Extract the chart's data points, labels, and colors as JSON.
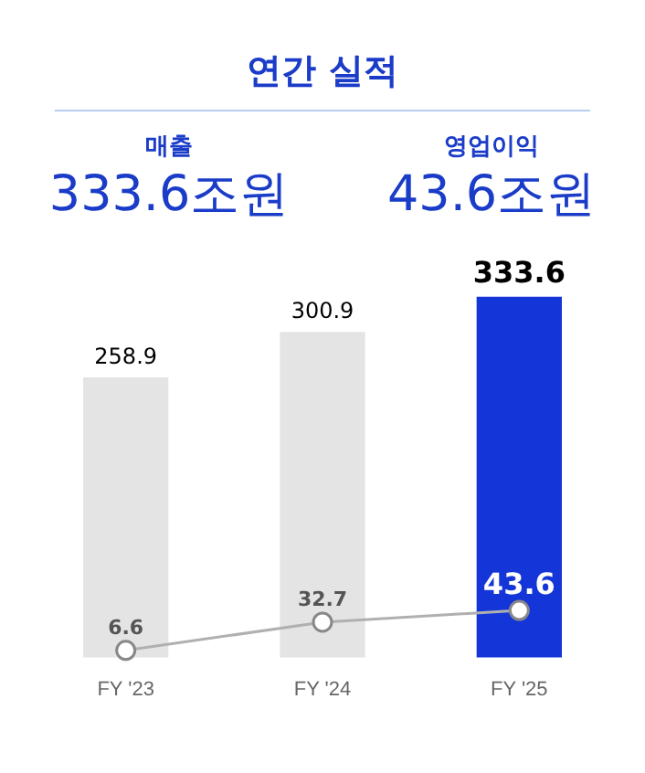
{
  "chart_data": {
    "type": "bar",
    "title": "연간 실적",
    "annotations": [
      "매출",
      "333.6조원",
      "영업이익",
      "43.6조원"
    ],
    "categories": [
      "FY '23",
      "FY '24",
      "FY '25"
    ],
    "series": [
      {
        "colors": [
          "#e4e4e4",
          "#e4e4e4",
          "#1436d8"
        ],
        "values": [
          258.9,
          300.9,
          333.6
        ]
      },
      {
        "type": "line",
        "color": "#b0b0b0",
        "values": [
          6.6,
          32.7,
          43.6
        ]
      }
    ],
    "data_labels": true,
    "marker": "circle",
    "grid": false,
    "legend": false
  }
}
